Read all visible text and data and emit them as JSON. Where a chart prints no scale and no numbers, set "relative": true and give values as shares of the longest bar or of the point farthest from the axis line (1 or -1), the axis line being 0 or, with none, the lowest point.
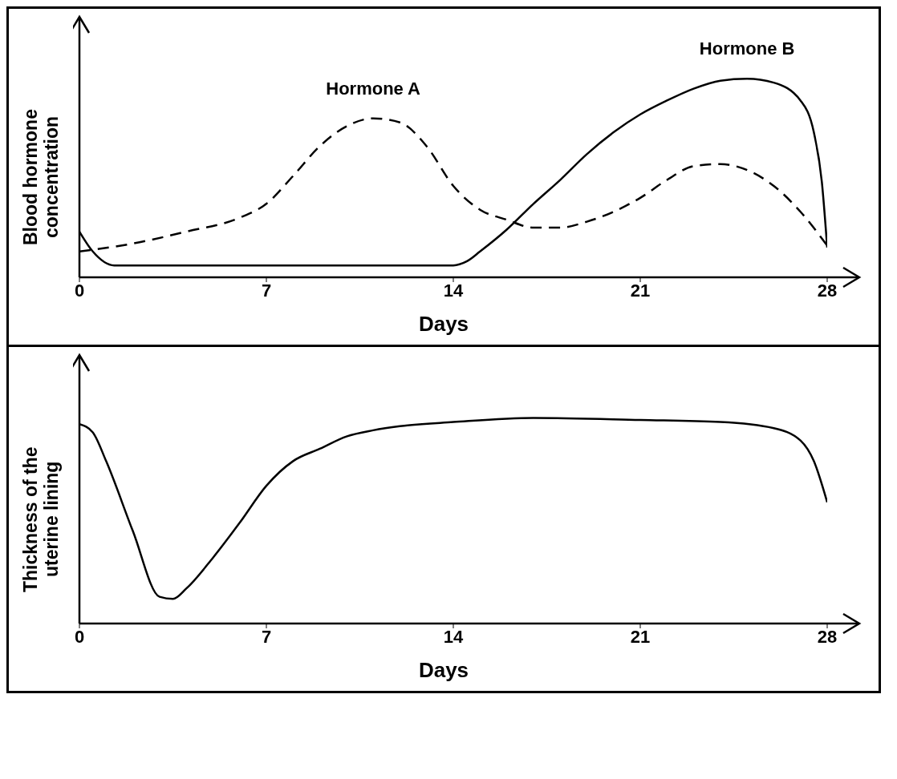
{
  "chart_data": [
    {
      "type": "line",
      "relative": true,
      "xlabel": "Days",
      "ylabel": "Blood hormone concentration",
      "xlim": [
        0,
        28
      ],
      "xticks": [
        0,
        7,
        14,
        21,
        28
      ],
      "tick_labels": "x",
      "series": [
        {
          "name": "Hormone A",
          "color": "#000000",
          "line_style": "dashed",
          "x": [
            0,
            2,
            4,
            6,
            7,
            8,
            9,
            10,
            11,
            12,
            13,
            14,
            15,
            16,
            17,
            18,
            19,
            20,
            21,
            22,
            23,
            24,
            25,
            26,
            27,
            28
          ],
          "values": [
            0.13,
            0.17,
            0.23,
            0.3,
            0.37,
            0.51,
            0.66,
            0.76,
            0.8,
            0.78,
            0.66,
            0.46,
            0.34,
            0.29,
            0.25,
            0.25,
            0.28,
            0.33,
            0.4,
            0.49,
            0.56,
            0.57,
            0.54,
            0.46,
            0.33,
            0.16
          ]
        },
        {
          "name": "Hormone B",
          "color": "#000000",
          "line_style": "solid",
          "x": [
            0,
            0.5,
            1.3,
            14,
            14.5,
            15,
            16,
            17,
            18,
            19,
            20,
            21,
            22,
            23,
            24,
            25,
            26,
            27,
            27.5,
            27.8,
            28
          ],
          "values": [
            0.23,
            0.13,
            0.06,
            0.06,
            0.08,
            0.13,
            0.24,
            0.37,
            0.49,
            0.62,
            0.73,
            0.82,
            0.89,
            0.95,
            0.99,
            1,
            0.98,
            0.89,
            0.73,
            0.48,
            0.15
          ]
        }
      ]
    },
    {
      "type": "line",
      "relative": true,
      "xlabel": "Days",
      "ylabel": "Thickness of the uterine lining",
      "xlim": [
        0,
        28
      ],
      "xticks": [
        0,
        7,
        14,
        21,
        28
      ],
      "tick_labels": "x",
      "series": [
        {
          "color": "#000000",
          "line_style": "solid",
          "x": [
            0,
            0.5,
            1,
            2,
            3,
            3.5,
            4,
            5,
            6,
            7,
            8,
            9,
            10,
            11,
            12,
            14,
            17,
            21,
            24,
            26,
            27,
            27.5,
            28
          ],
          "values": [
            0.97,
            0.93,
            0.79,
            0.45,
            0.13,
            0.12,
            0.17,
            0.32,
            0.49,
            0.67,
            0.79,
            0.85,
            0.91,
            0.94,
            0.96,
            0.98,
            1,
            0.99,
            0.98,
            0.95,
            0.89,
            0.79,
            0.59
          ]
        }
      ]
    }
  ]
}
